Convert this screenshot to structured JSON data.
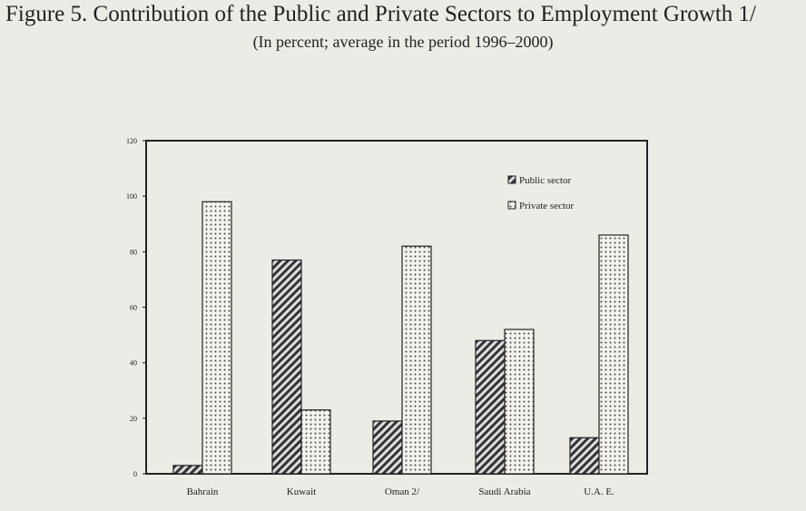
{
  "chart_data": {
    "type": "bar",
    "title": "Figure 5. Contribution of the Public and Private Sectors to Employment Growth 1/",
    "subtitle": "(In percent; average in the period 1996–2000)",
    "xlabel": "",
    "ylabel": "",
    "ylim": [
      0,
      120
    ],
    "yticks": [
      0,
      20,
      40,
      60,
      80,
      100,
      120
    ],
    "categories": [
      "Bahrain",
      "Kuwait",
      "Oman 2/",
      "Saudi Arabia",
      "U.A. E."
    ],
    "series": [
      {
        "name": "Public sector",
        "pattern": "hatch",
        "values": [
          3,
          77,
          19,
          48,
          13
        ]
      },
      {
        "name": "Private sector",
        "pattern": "dots",
        "values": [
          98,
          23,
          82,
          52,
          86
        ]
      }
    ],
    "legend_position": "top-right",
    "grid": false
  }
}
